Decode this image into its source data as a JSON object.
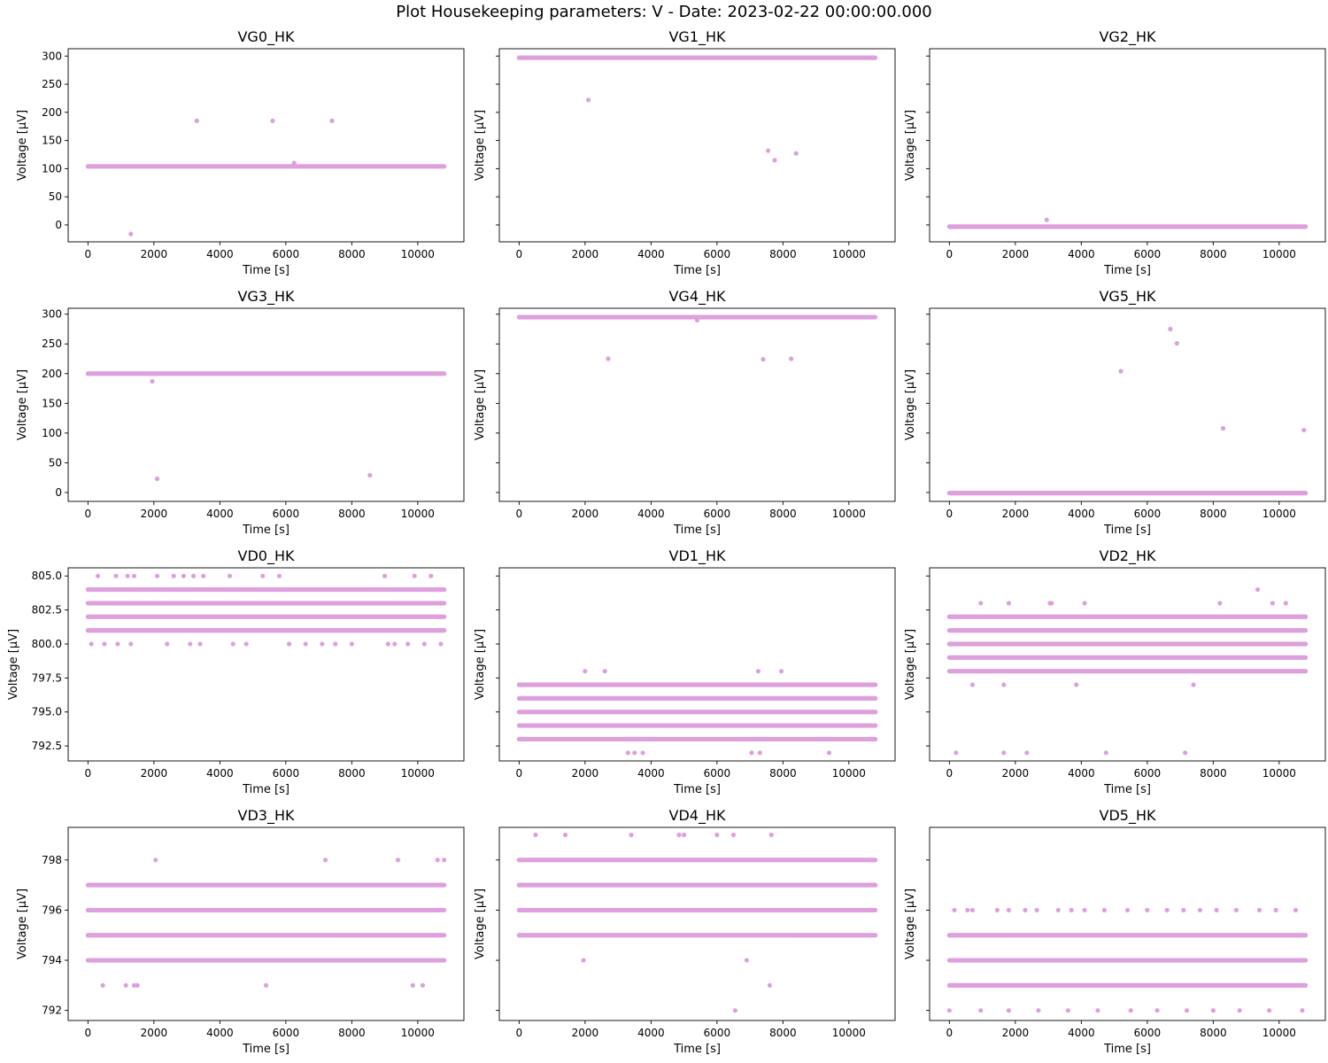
{
  "figure": {
    "title": "Plot Housekeeping parameters: V - Date: 2023-02-22 00:00:00.000",
    "marker_color": "#dda0dd"
  },
  "chart_data": [
    {
      "type": "scatter",
      "title": "VG0_HK",
      "xlabel": "Time [s]",
      "ylabel": "Voltage [μV]",
      "xlim": [
        -600,
        11400
      ],
      "ylim": [
        -30,
        313
      ],
      "xticks": [
        0,
        2000,
        4000,
        6000,
        8000,
        10000
      ],
      "xtick_labels": [
        "0",
        "2000",
        "4000",
        "6000",
        "8000",
        "10000"
      ],
      "yticks": [
        0,
        50,
        100,
        150,
        200,
        250,
        300
      ],
      "ytick_labels": [
        "0",
        "50",
        "100",
        "150",
        "200",
        "250",
        "300"
      ],
      "show_ytick_labels": true,
      "bands": [
        {
          "y": 104,
          "x_from": 0,
          "x_to": 10800
        }
      ],
      "points": [
        [
          1300,
          -16
        ],
        [
          3300,
          185
        ],
        [
          5600,
          185
        ],
        [
          7400,
          185
        ],
        [
          6250,
          110
        ]
      ]
    },
    {
      "type": "scatter",
      "title": "VG1_HK",
      "xlabel": "Time [s]",
      "ylabel": "Voltage [μV]",
      "xlim": [
        -600,
        11400
      ],
      "ylim": [
        -30,
        313
      ],
      "xticks": [
        0,
        2000,
        4000,
        6000,
        8000,
        10000
      ],
      "xtick_labels": [
        "0",
        "2000",
        "4000",
        "6000",
        "8000",
        "10000"
      ],
      "yticks": [
        0,
        50,
        100,
        150,
        200,
        250,
        300
      ],
      "ytick_labels": [
        "0",
        "50",
        "100",
        "150",
        "200",
        "250",
        "300"
      ],
      "show_ytick_labels": false,
      "bands": [
        {
          "y": 297,
          "x_from": 0,
          "x_to": 10800
        }
      ],
      "points": [
        [
          2100,
          222
        ],
        [
          7550,
          132
        ],
        [
          7750,
          115
        ],
        [
          8400,
          127
        ]
      ]
    },
    {
      "type": "scatter",
      "title": "VG2_HK",
      "xlabel": "Time [s]",
      "ylabel": "Voltage [μV]",
      "xlim": [
        -600,
        11400
      ],
      "ylim": [
        -30,
        313
      ],
      "xticks": [
        0,
        2000,
        4000,
        6000,
        8000,
        10000
      ],
      "xtick_labels": [
        "0",
        "2000",
        "4000",
        "6000",
        "8000",
        "10000"
      ],
      "yticks": [
        0,
        50,
        100,
        150,
        200,
        250,
        300
      ],
      "ytick_labels": [
        "0",
        "50",
        "100",
        "150",
        "200",
        "250",
        "300"
      ],
      "show_ytick_labels": false,
      "bands": [
        {
          "y": -3,
          "x_from": 0,
          "x_to": 10800
        }
      ],
      "points": [
        [
          2950,
          9
        ]
      ]
    },
    {
      "type": "scatter",
      "title": "VG3_HK",
      "xlabel": "Time [s]",
      "ylabel": "Voltage [μV]",
      "xlim": [
        -600,
        11400
      ],
      "ylim": [
        -15,
        310
      ],
      "xticks": [
        0,
        2000,
        4000,
        6000,
        8000,
        10000
      ],
      "xtick_labels": [
        "0",
        "2000",
        "4000",
        "6000",
        "8000",
        "10000"
      ],
      "yticks": [
        0,
        50,
        100,
        150,
        200,
        250,
        300
      ],
      "ytick_labels": [
        "0",
        "50",
        "100",
        "150",
        "200",
        "250",
        "300"
      ],
      "show_ytick_labels": true,
      "bands": [
        {
          "y": 200,
          "x_from": 0,
          "x_to": 10800
        }
      ],
      "points": [
        [
          1950,
          187
        ],
        [
          2100,
          23
        ],
        [
          8550,
          29
        ]
      ]
    },
    {
      "type": "scatter",
      "title": "VG4_HK",
      "xlabel": "Time [s]",
      "ylabel": "Voltage [μV]",
      "xlim": [
        -600,
        11400
      ],
      "ylim": [
        -15,
        310
      ],
      "xticks": [
        0,
        2000,
        4000,
        6000,
        8000,
        10000
      ],
      "xtick_labels": [
        "0",
        "2000",
        "4000",
        "6000",
        "8000",
        "10000"
      ],
      "yticks": [
        0,
        50,
        100,
        150,
        200,
        250,
        300
      ],
      "ytick_labels": [
        "0",
        "50",
        "100",
        "150",
        "200",
        "250",
        "300"
      ],
      "show_ytick_labels": false,
      "bands": [
        {
          "y": 295,
          "x_from": 0,
          "x_to": 10800
        }
      ],
      "points": [
        [
          2700,
          225
        ],
        [
          5400,
          290
        ],
        [
          7400,
          224
        ],
        [
          8250,
          225
        ]
      ]
    },
    {
      "type": "scatter",
      "title": "VG5_HK",
      "xlabel": "Time [s]",
      "ylabel": "Voltage [μV]",
      "xlim": [
        -600,
        11400
      ],
      "ylim": [
        -15,
        310
      ],
      "xticks": [
        0,
        2000,
        4000,
        6000,
        8000,
        10000
      ],
      "xtick_labels": [
        "0",
        "2000",
        "4000",
        "6000",
        "8000",
        "10000"
      ],
      "yticks": [
        0,
        50,
        100,
        150,
        200,
        250,
        300
      ],
      "ytick_labels": [
        "0",
        "50",
        "100",
        "150",
        "200",
        "250",
        "300"
      ],
      "show_ytick_labels": false,
      "bands": [
        {
          "y": -1,
          "x_from": 0,
          "x_to": 10800
        }
      ],
      "points": [
        [
          5200,
          204
        ],
        [
          6700,
          275
        ],
        [
          6900,
          251
        ],
        [
          8300,
          108
        ],
        [
          10750,
          105
        ]
      ]
    },
    {
      "type": "scatter",
      "title": "VD0_HK",
      "xlabel": "Time [s]",
      "ylabel": "Voltage [μV]",
      "xlim": [
        -600,
        11400
      ],
      "ylim": [
        791.4,
        805.6
      ],
      "xticks": [
        0,
        2000,
        4000,
        6000,
        8000,
        10000
      ],
      "xtick_labels": [
        "0",
        "2000",
        "4000",
        "6000",
        "8000",
        "10000"
      ],
      "yticks": [
        792.5,
        795.0,
        797.5,
        800.0,
        802.5,
        805.0
      ],
      "ytick_labels": [
        "792.5",
        "795.0",
        "797.5",
        "800.0",
        "802.5",
        "805.0"
      ],
      "show_ytick_labels": true,
      "bands": [
        {
          "y": 804,
          "x_from": 0,
          "x_to": 10800
        },
        {
          "y": 803,
          "x_from": 0,
          "x_to": 10800
        },
        {
          "y": 802,
          "x_from": 0,
          "x_to": 10800
        },
        {
          "y": 801,
          "x_from": 0,
          "x_to": 10800
        }
      ],
      "points": [
        [
          100,
          800
        ],
        [
          300,
          805
        ],
        [
          500,
          800
        ],
        [
          850,
          805
        ],
        [
          900,
          800
        ],
        [
          1200,
          805
        ],
        [
          1300,
          800
        ],
        [
          1400,
          805
        ],
        [
          2100,
          805
        ],
        [
          2400,
          800
        ],
        [
          2600,
          805
        ],
        [
          2900,
          805
        ],
        [
          3100,
          800
        ],
        [
          3200,
          805
        ],
        [
          3400,
          800
        ],
        [
          3500,
          805
        ],
        [
          4300,
          805
        ],
        [
          4400,
          800
        ],
        [
          4800,
          800
        ],
        [
          5300,
          805
        ],
        [
          5800,
          805
        ],
        [
          6100,
          800
        ],
        [
          6600,
          800
        ],
        [
          7100,
          800
        ],
        [
          7500,
          800
        ],
        [
          8000,
          800
        ],
        [
          9000,
          805
        ],
        [
          9100,
          800
        ],
        [
          9300,
          800
        ],
        [
          9700,
          800
        ],
        [
          9900,
          805
        ],
        [
          10200,
          800
        ],
        [
          10400,
          805
        ],
        [
          10700,
          800
        ]
      ]
    },
    {
      "type": "scatter",
      "title": "VD1_HK",
      "xlabel": "Time [s]",
      "ylabel": "Voltage [μV]",
      "xlim": [
        -600,
        11400
      ],
      "ylim": [
        791.4,
        805.6
      ],
      "xticks": [
        0,
        2000,
        4000,
        6000,
        8000,
        10000
      ],
      "xtick_labels": [
        "0",
        "2000",
        "4000",
        "6000",
        "8000",
        "10000"
      ],
      "yticks": [
        792.5,
        795.0,
        797.5,
        800.0,
        802.5,
        805.0
      ],
      "ytick_labels": [
        "792.5",
        "795.0",
        "797.5",
        "800.0",
        "802.5",
        "805.0"
      ],
      "show_ytick_labels": false,
      "bands": [
        {
          "y": 797,
          "x_from": 0,
          "x_to": 10800
        },
        {
          "y": 796,
          "x_from": 0,
          "x_to": 10800
        },
        {
          "y": 795,
          "x_from": 0,
          "x_to": 10800
        },
        {
          "y": 794,
          "x_from": 0,
          "x_to": 10800
        },
        {
          "y": 793,
          "x_from": 0,
          "x_to": 10800
        }
      ],
      "points": [
        [
          2000,
          798
        ],
        [
          2600,
          798
        ],
        [
          7250,
          798
        ],
        [
          7950,
          798
        ],
        [
          3300,
          792
        ],
        [
          3500,
          792
        ],
        [
          3750,
          792
        ],
        [
          7050,
          792
        ],
        [
          7300,
          792
        ],
        [
          9400,
          792
        ]
      ]
    },
    {
      "type": "scatter",
      "title": "VD2_HK",
      "xlabel": "Time [s]",
      "ylabel": "Voltage [μV]",
      "xlim": [
        -600,
        11400
      ],
      "ylim": [
        791.4,
        805.6
      ],
      "xticks": [
        0,
        2000,
        4000,
        6000,
        8000,
        10000
      ],
      "xtick_labels": [
        "0",
        "2000",
        "4000",
        "6000",
        "8000",
        "10000"
      ],
      "yticks": [
        792.5,
        795.0,
        797.5,
        800.0,
        802.5,
        805.0
      ],
      "ytick_labels": [
        "792.5",
        "795.0",
        "797.5",
        "800.0",
        "802.5",
        "805.0"
      ],
      "show_ytick_labels": false,
      "bands": [
        {
          "y": 802,
          "x_from": 0,
          "x_to": 10800
        },
        {
          "y": 801,
          "x_from": 0,
          "x_to": 10800
        },
        {
          "y": 800,
          "x_from": 0,
          "x_to": 10800
        },
        {
          "y": 799,
          "x_from": 0,
          "x_to": 10800
        },
        {
          "y": 798,
          "x_from": 0,
          "x_to": 10800
        }
      ],
      "points": [
        [
          950,
          803
        ],
        [
          1800,
          803
        ],
        [
          3050,
          803
        ],
        [
          3100,
          803
        ],
        [
          4100,
          803
        ],
        [
          8200,
          803
        ],
        [
          9350,
          804
        ],
        [
          9800,
          803
        ],
        [
          10200,
          803
        ],
        [
          700,
          797
        ],
        [
          1650,
          797
        ],
        [
          3850,
          797
        ],
        [
          7400,
          797
        ],
        [
          200,
          792
        ],
        [
          1650,
          792
        ],
        [
          2350,
          792
        ],
        [
          4750,
          792
        ],
        [
          7150,
          792
        ]
      ]
    },
    {
      "type": "scatter",
      "title": "VD3_HK",
      "xlabel": "Time [s]",
      "ylabel": "Voltage [μV]",
      "xlim": [
        -600,
        11400
      ],
      "ylim": [
        791.6,
        799.3
      ],
      "xticks": [
        0,
        2000,
        4000,
        6000,
        8000,
        10000
      ],
      "xtick_labels": [
        "0",
        "2000",
        "4000",
        "6000",
        "8000",
        "10000"
      ],
      "yticks": [
        792,
        794,
        796,
        798
      ],
      "ytick_labels": [
        "792",
        "794",
        "796",
        "798"
      ],
      "show_ytick_labels": true,
      "bands": [
        {
          "y": 797,
          "x_from": 0,
          "x_to": 10800
        },
        {
          "y": 796,
          "x_from": 0,
          "x_to": 10800
        },
        {
          "y": 795,
          "x_from": 0,
          "x_to": 10800
        },
        {
          "y": 794,
          "x_from": 0,
          "x_to": 10800
        }
      ],
      "points": [
        [
          2050,
          798
        ],
        [
          7200,
          798
        ],
        [
          9400,
          798
        ],
        [
          10600,
          798
        ],
        [
          10800,
          798
        ],
        [
          450,
          793
        ],
        [
          1150,
          793
        ],
        [
          1400,
          793
        ],
        [
          1500,
          793
        ],
        [
          5400,
          793
        ],
        [
          9850,
          793
        ],
        [
          10150,
          793
        ]
      ]
    },
    {
      "type": "scatter",
      "title": "VD4_HK",
      "xlabel": "Time [s]",
      "ylabel": "Voltage [μV]",
      "xlim": [
        -600,
        11400
      ],
      "ylim": [
        791.6,
        799.3
      ],
      "xticks": [
        0,
        2000,
        4000,
        6000,
        8000,
        10000
      ],
      "xtick_labels": [
        "0",
        "2000",
        "4000",
        "6000",
        "8000",
        "10000"
      ],
      "yticks": [
        792,
        794,
        796,
        798
      ],
      "ytick_labels": [
        "792",
        "794",
        "796",
        "798"
      ],
      "show_ytick_labels": false,
      "bands": [
        {
          "y": 798,
          "x_from": 0,
          "x_to": 10800
        },
        {
          "y": 797,
          "x_from": 0,
          "x_to": 10800
        },
        {
          "y": 796,
          "x_from": 0,
          "x_to": 10800
        },
        {
          "y": 795,
          "x_from": 0,
          "x_to": 10800
        }
      ],
      "points": [
        [
          500,
          799
        ],
        [
          1400,
          799
        ],
        [
          3400,
          799
        ],
        [
          4850,
          799
        ],
        [
          5000,
          799
        ],
        [
          6000,
          799
        ],
        [
          6500,
          799
        ],
        [
          7650,
          799
        ],
        [
          1950,
          794
        ],
        [
          6900,
          794
        ],
        [
          7600,
          793
        ],
        [
          6550,
          792
        ]
      ]
    },
    {
      "type": "scatter",
      "title": "VD5_HK",
      "xlabel": "Time [s]",
      "ylabel": "Voltage [μV]",
      "xlim": [
        -600,
        11400
      ],
      "ylim": [
        791.6,
        799.3
      ],
      "xticks": [
        0,
        2000,
        4000,
        6000,
        8000,
        10000
      ],
      "xtick_labels": [
        "0",
        "2000",
        "4000",
        "6000",
        "8000",
        "10000"
      ],
      "yticks": [
        792,
        794,
        796,
        798
      ],
      "ytick_labels": [
        "792",
        "794",
        "796",
        "798"
      ],
      "show_ytick_labels": false,
      "bands": [
        {
          "y": 795,
          "x_from": 0,
          "x_to": 10800
        },
        {
          "y": 794,
          "x_from": 0,
          "x_to": 10800
        },
        {
          "y": 793,
          "x_from": 0,
          "x_to": 10800
        }
      ],
      "points": [
        [
          150,
          796
        ],
        [
          550,
          796
        ],
        [
          700,
          796
        ],
        [
          1450,
          796
        ],
        [
          1800,
          796
        ],
        [
          2300,
          796
        ],
        [
          2650,
          796
        ],
        [
          3300,
          796
        ],
        [
          3700,
          796
        ],
        [
          4100,
          796
        ],
        [
          4700,
          796
        ],
        [
          5400,
          796
        ],
        [
          6000,
          796
        ],
        [
          6600,
          796
        ],
        [
          7100,
          796
        ],
        [
          7600,
          796
        ],
        [
          8100,
          796
        ],
        [
          8700,
          796
        ],
        [
          9400,
          796
        ],
        [
          9900,
          796
        ],
        [
          10500,
          796
        ],
        [
          0,
          792
        ],
        [
          950,
          792
        ],
        [
          1800,
          792
        ],
        [
          2700,
          792
        ],
        [
          3600,
          792
        ],
        [
          4500,
          792
        ],
        [
          5500,
          792
        ],
        [
          6300,
          792
        ],
        [
          7200,
          792
        ],
        [
          8000,
          792
        ],
        [
          8800,
          792
        ],
        [
          9700,
          792
        ],
        [
          10700,
          792
        ]
      ]
    }
  ]
}
